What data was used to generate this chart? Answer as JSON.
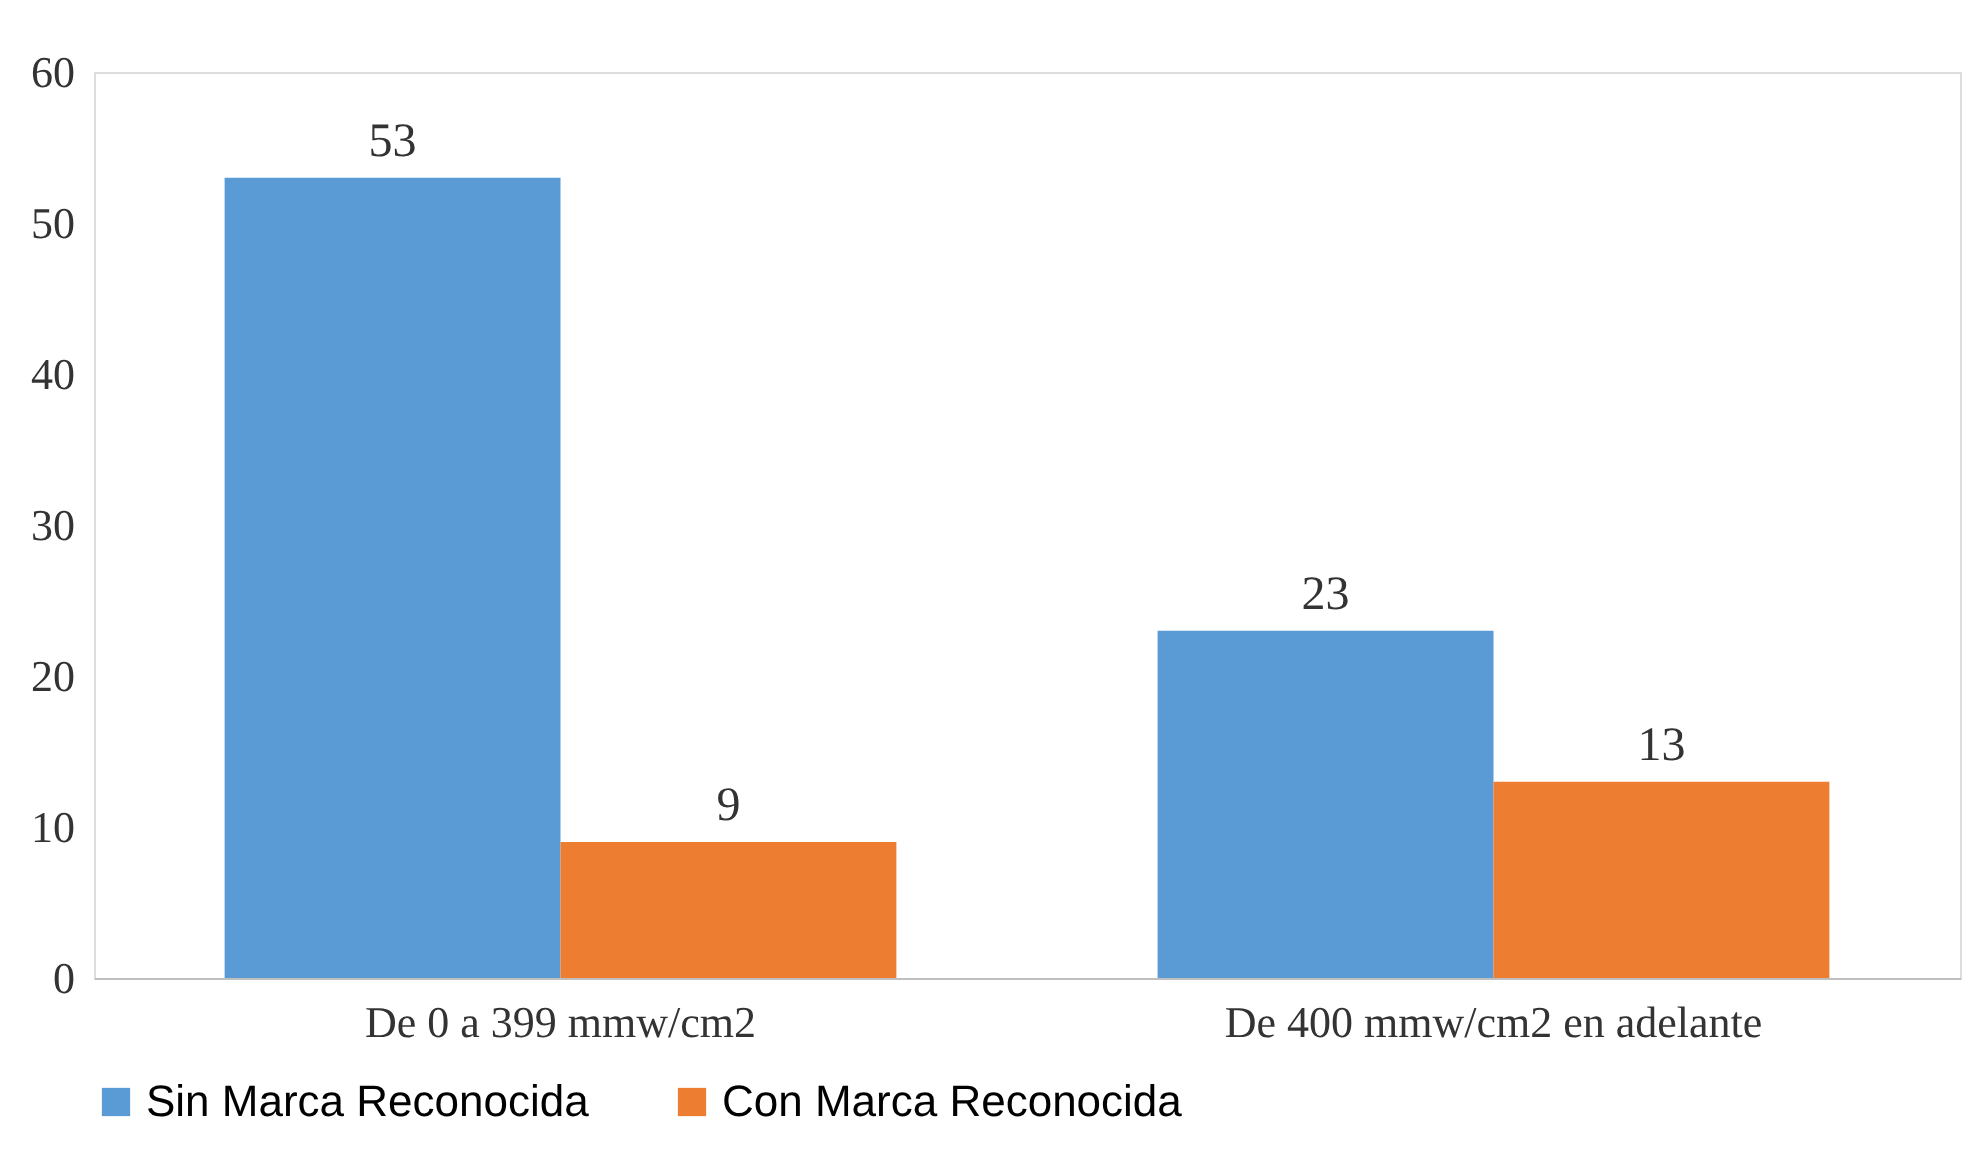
{
  "chart_data": {
    "type": "bar",
    "categories": [
      "De 0 a 399 mmw/cm2",
      "De 400 mmw/cm2 en adelante"
    ],
    "series": [
      {
        "name": "Sin Marca Reconocida",
        "color": "#5b9bd5",
        "values": [
          53,
          23
        ]
      },
      {
        "name": "Con Marca Reconocida",
        "color": "#ed7d31",
        "values": [
          9,
          13
        ]
      }
    ],
    "ylim": [
      0,
      60
    ],
    "yticks": [
      0,
      10,
      20,
      30,
      40,
      50,
      60
    ],
    "grid": false,
    "legend": "bottom",
    "data_labels": true
  }
}
